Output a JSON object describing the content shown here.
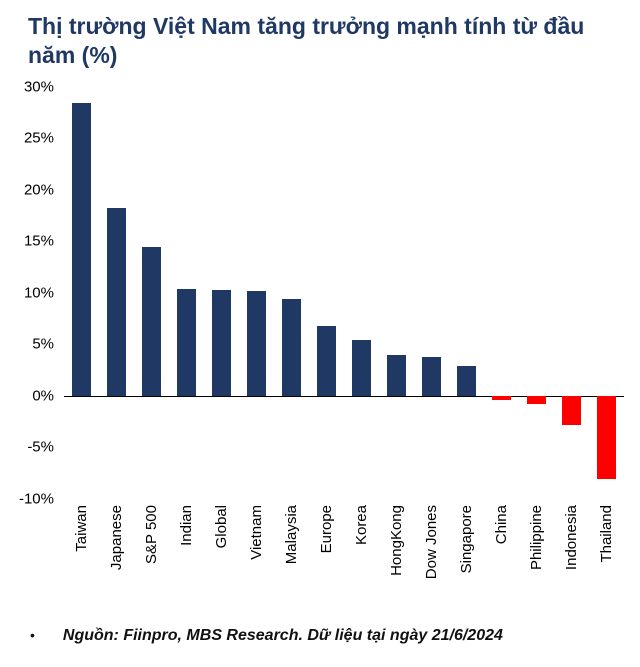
{
  "title": "Thị trường Việt Nam tăng trưởng mạnh tính từ đầu năm (%)",
  "footer": {
    "bullet": "•",
    "text": "Nguồn: Fiinpro, MBS Research. Dữ liệu tại ngày 21/6/2024"
  },
  "chart_data": {
    "type": "bar",
    "title": "Thị trường Việt Nam tăng trưởng mạnh tính từ đầu năm (%)",
    "categories": [
      "Taiwan",
      "Japanese",
      "S&P 500",
      "Indian",
      "Global",
      "Vietnam",
      "Malaysia",
      "Europe",
      "Korea",
      "HongKong",
      "Dow Jones",
      "Singapore",
      "China",
      "Philippine",
      "Indonesia",
      "Thailand"
    ],
    "values": [
      28.4,
      18.2,
      14.5,
      10.4,
      10.3,
      10.2,
      9.4,
      6.8,
      5.4,
      4.0,
      3.8,
      2.9,
      -0.4,
      -0.8,
      -2.8,
      -8.1
    ],
    "xlabel": "",
    "ylabel": "",
    "ylim": [
      -10,
      30
    ],
    "yticks": [
      30,
      25,
      20,
      15,
      10,
      5,
      0,
      -5,
      -10
    ],
    "ytick_suffix": "%",
    "grid": false,
    "legend": "none",
    "bar_color_positive": "#1F3864",
    "bar_color_negative": "#FF0000",
    "title_color": "#1F3864"
  }
}
